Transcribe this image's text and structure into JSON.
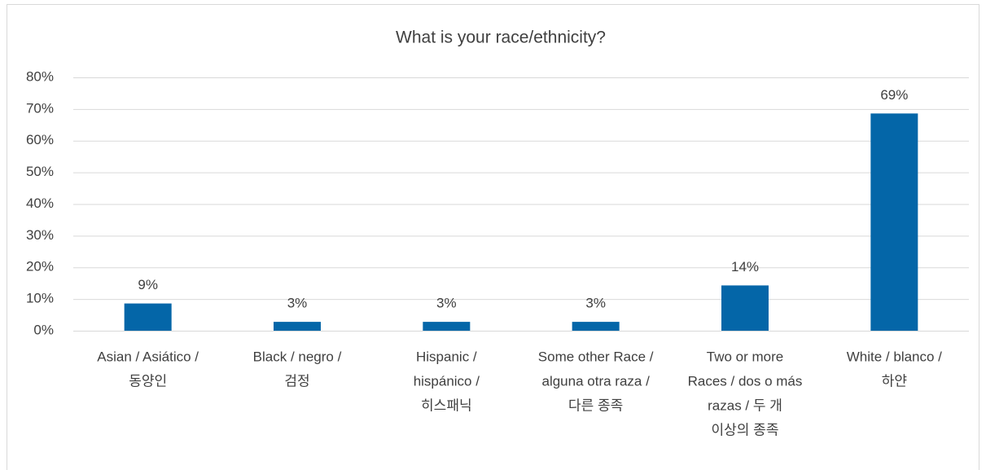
{
  "chart_data": {
    "type": "bar",
    "title": "What is your race/ethnicity?",
    "categories": [
      [
        "Asian / Asiático /",
        "동양인"
      ],
      [
        "Black / negro /",
        "검정"
      ],
      [
        "Hispanic /",
        "hispánico /",
        "히스패닉"
      ],
      [
        "Some other Race /",
        "alguna otra raza /",
        "다른 종족"
      ],
      [
        "Two or more",
        "Races / dos o más",
        "razas / 두 개",
        "이상의 종족"
      ],
      [
        "White / blanco /",
        "하얀"
      ]
    ],
    "values": [
      8.6,
      2.8,
      2.8,
      2.8,
      14.3,
      68.6
    ],
    "value_labels": [
      "9%",
      "3%",
      "3%",
      "3%",
      "14%",
      "69%"
    ],
    "color": "#0466a8",
    "ylim": [
      0,
      80
    ],
    "yticks": [
      {
        "value": 0,
        "label": "0%"
      },
      {
        "value": 10,
        "label": "10%"
      },
      {
        "value": 20,
        "label": "20%"
      },
      {
        "value": 30,
        "label": "30%"
      },
      {
        "value": 40,
        "label": "40%"
      },
      {
        "value": 50,
        "label": "50%"
      },
      {
        "value": 60,
        "label": "60%"
      },
      {
        "value": 70,
        "label": "70%"
      },
      {
        "value": 80,
        "label": "80%"
      }
    ],
    "grid": true
  }
}
